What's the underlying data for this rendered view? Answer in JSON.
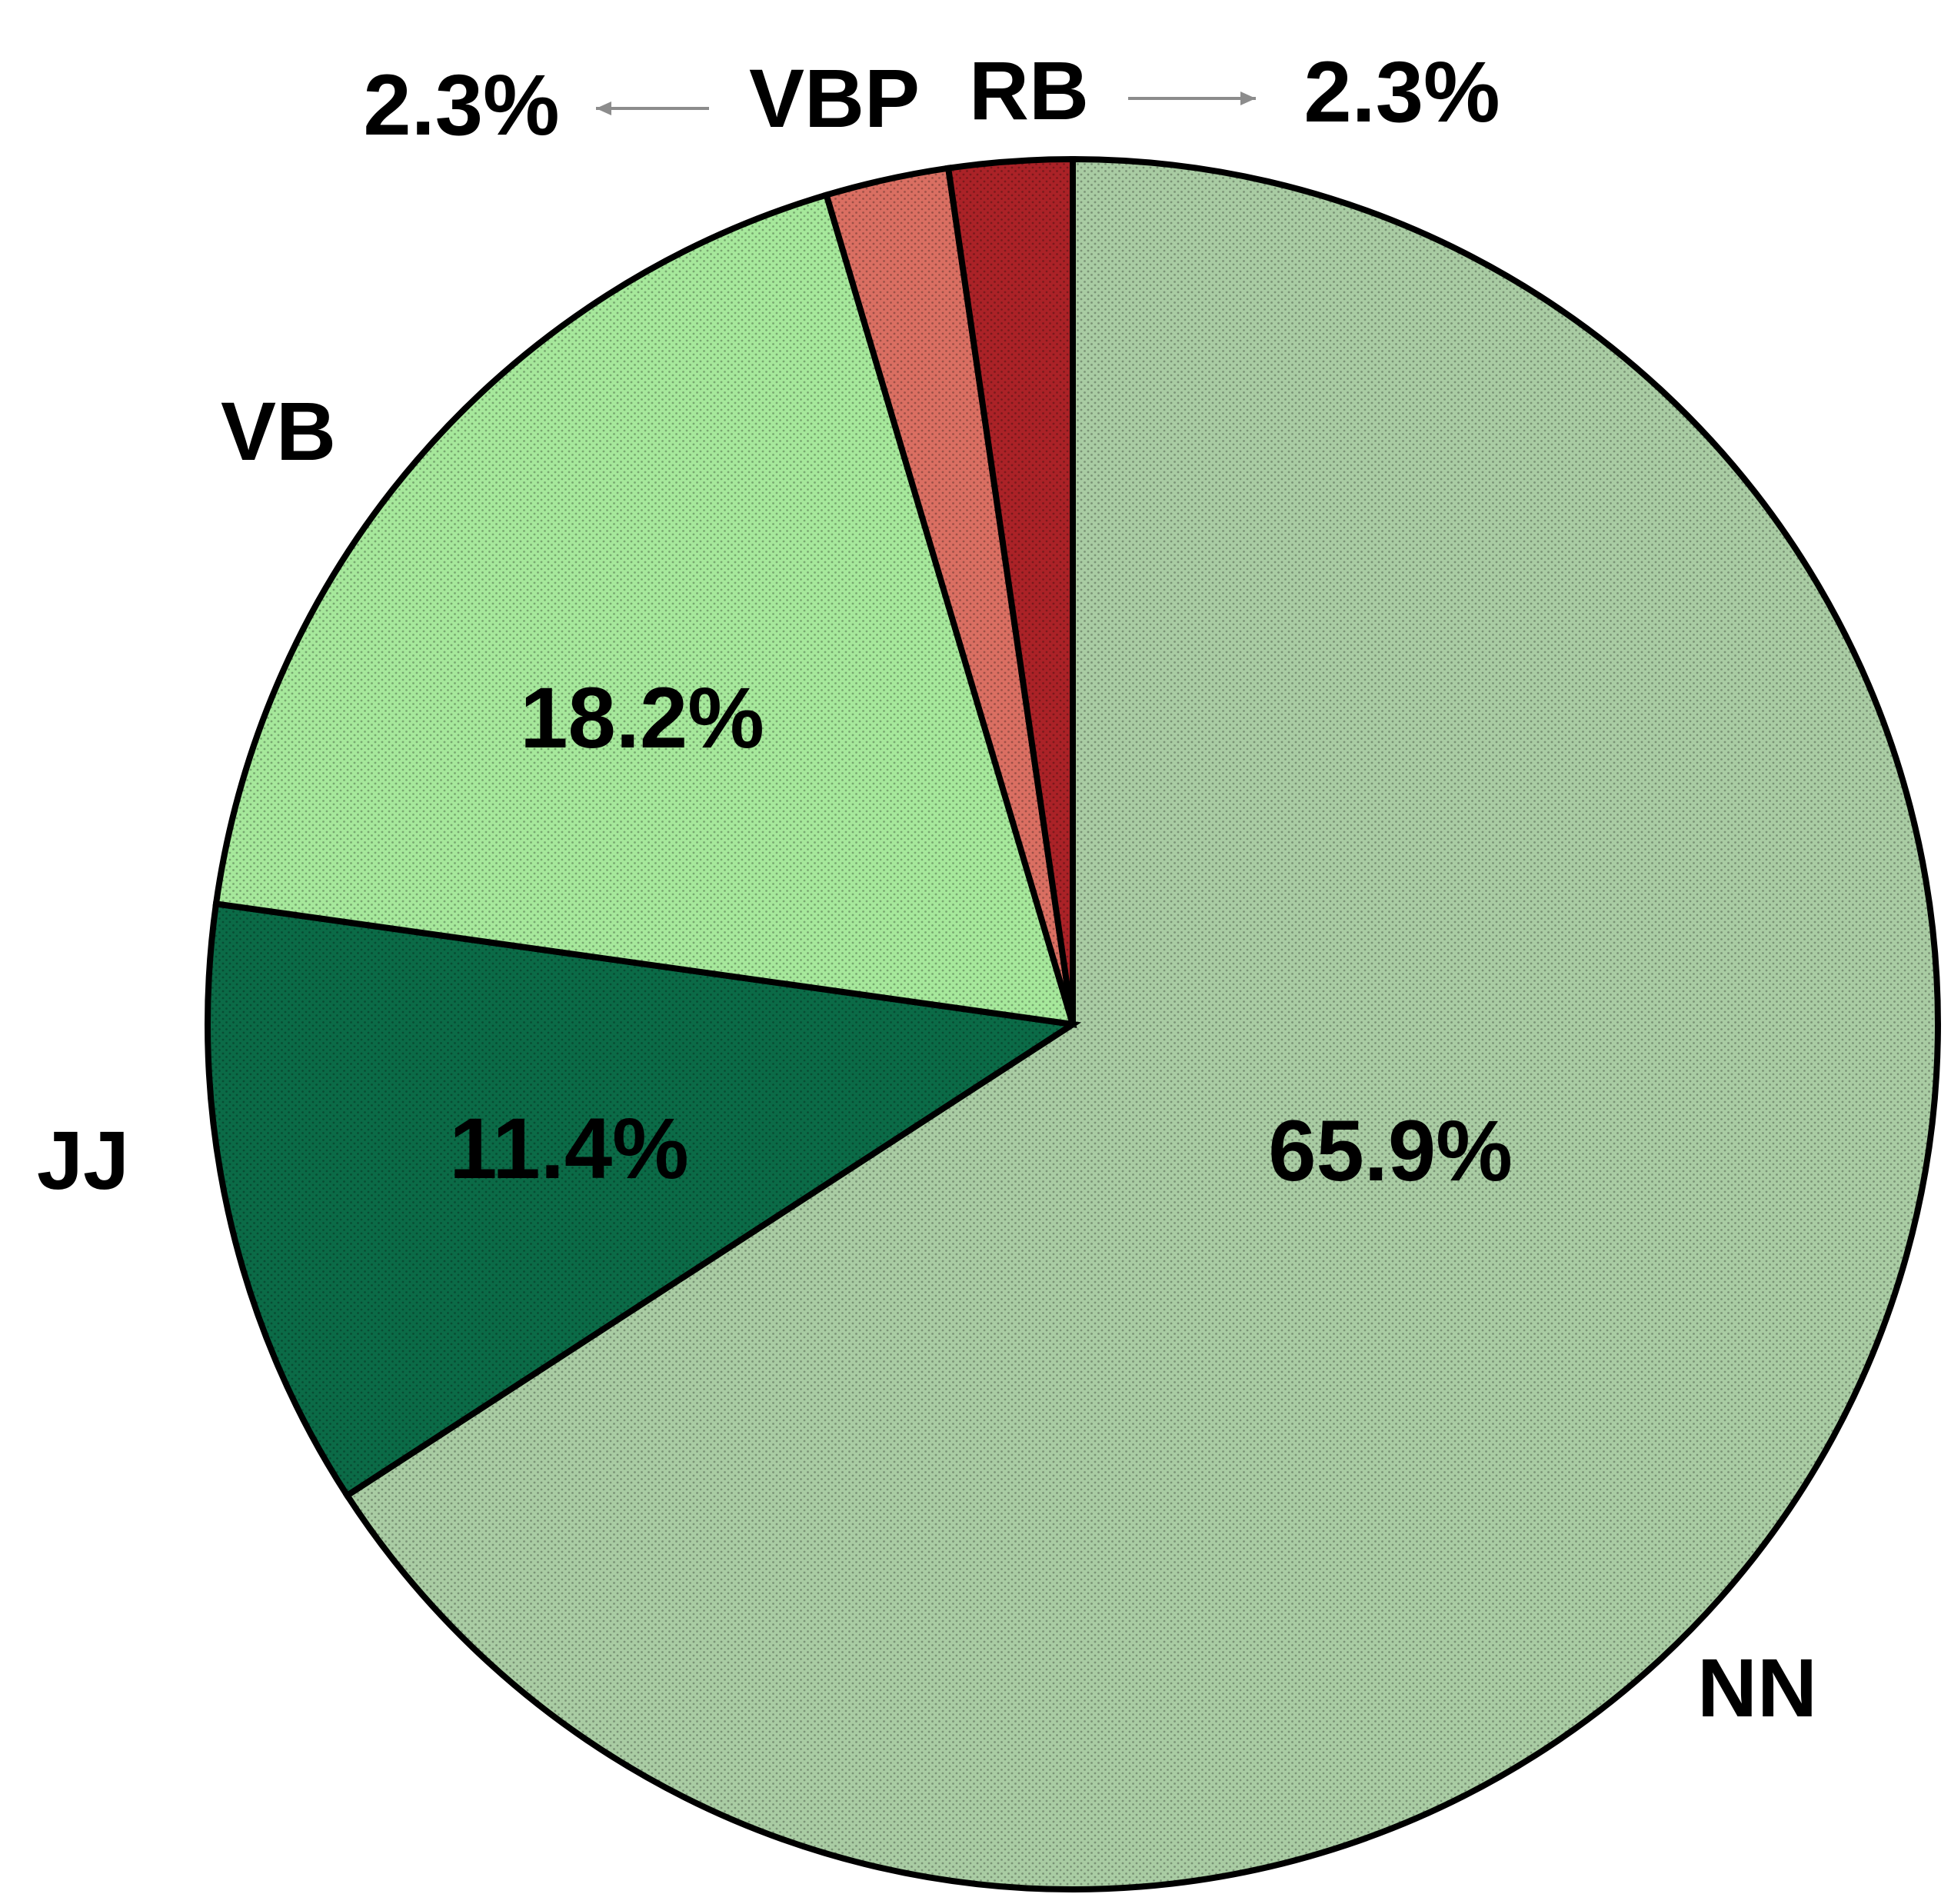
{
  "chart_data": {
    "type": "pie",
    "title": "",
    "slices": [
      {
        "label": "NN",
        "value": 65.9,
        "value_label": "65.9%",
        "color": "#a9cca3"
      },
      {
        "label": "JJ",
        "value": 11.4,
        "value_label": "11.4%",
        "color": "#0b6b47"
      },
      {
        "label": "VB",
        "value": 18.2,
        "value_label": "18.2%",
        "color": "#a6e89b"
      },
      {
        "label": "VBP",
        "value": 2.3,
        "value_label": "2.3%",
        "color": "#da6f62"
      },
      {
        "label": "RB",
        "value": 2.3,
        "value_label": "2.3%",
        "color": "#ab2227"
      }
    ],
    "start": "12 o'clock",
    "direction": "clockwise",
    "texture": "stippled dots",
    "legend": "none"
  }
}
